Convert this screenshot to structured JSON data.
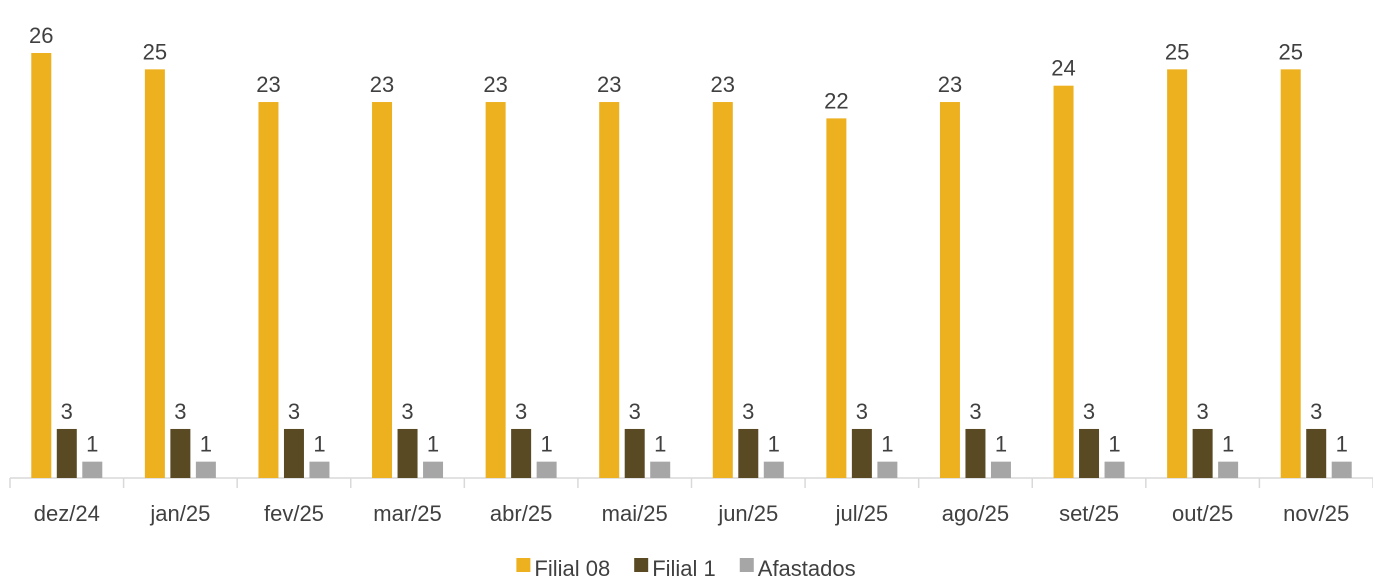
{
  "chart_data": {
    "type": "bar",
    "categories": [
      "dez/24",
      "jan/25",
      "fev/25",
      "mar/25",
      "abr/25",
      "mai/25",
      "jun/25",
      "jul/25",
      "ago/25",
      "set/25",
      "out/25",
      "nov/25"
    ],
    "series": [
      {
        "name": "Filial 08",
        "color": "#EDB01E",
        "values": [
          26,
          25,
          23,
          23,
          23,
          23,
          23,
          22,
          23,
          24,
          25,
          25
        ]
      },
      {
        "name": "Filial 1",
        "color": "#5A4A24",
        "values": [
          3,
          3,
          3,
          3,
          3,
          3,
          3,
          3,
          3,
          3,
          3,
          3
        ]
      },
      {
        "name": "Afastados",
        "color": "#A6A6A6",
        "values": [
          1,
          1,
          1,
          1,
          1,
          1,
          1,
          1,
          1,
          1,
          1,
          1
        ]
      }
    ],
    "legend": "bottom"
  }
}
